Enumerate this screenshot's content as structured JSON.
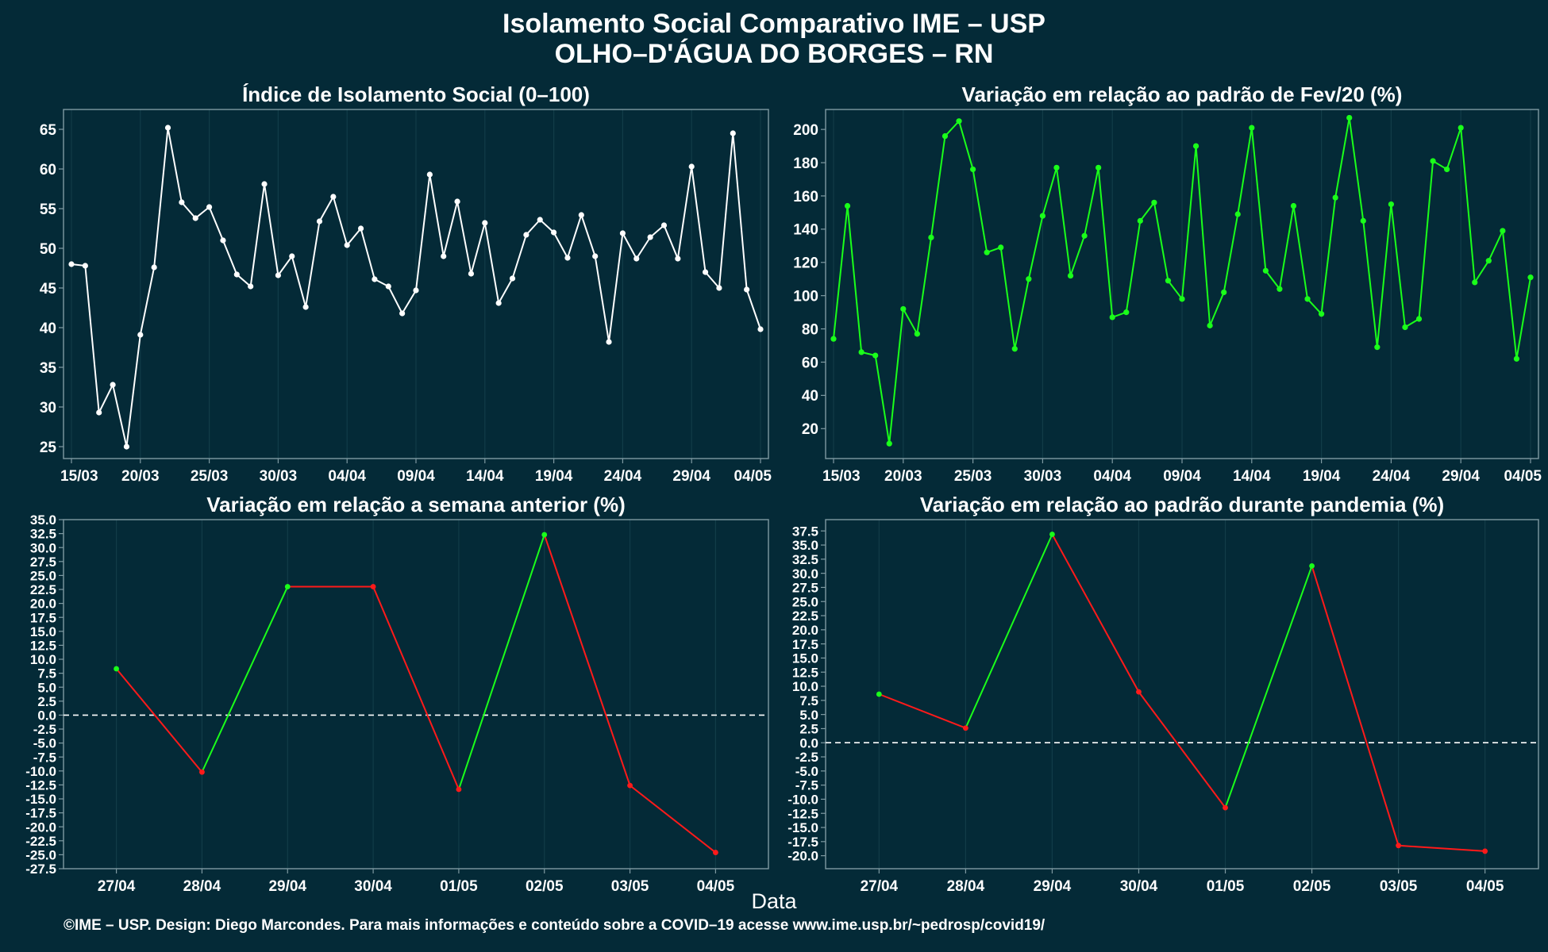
{
  "header": {
    "title_line1": "Isolamento Social Comparativo IME – USP",
    "title_line2": "OLHO–D'ÁGUA DO BORGES – RN"
  },
  "x_axis_title": "Data",
  "footer": "©IME – USP. Design: Diego Marcondes. Para mais informações e conteúdo sobre a COVID–19 acesse www.ime.usp.br/~pedrosp/covid19/",
  "colors": {
    "background": "#042a37",
    "white_series": "#ffffff",
    "green": "#1aff1a",
    "red": "#ff1a1a",
    "axis": "#7f9aa2",
    "grid": "#123c48"
  },
  "chart_data": [
    {
      "id": "isolation",
      "type": "line",
      "title": "Índice de Isolamento Social (0–100)",
      "color_mode": "single",
      "color": "#ffffff",
      "x_start": "15/03",
      "x_ticks": [
        "15/03",
        "20/03",
        "25/03",
        "30/03",
        "04/04",
        "09/04",
        "14/04",
        "19/04",
        "24/04",
        "29/04",
        "04/05"
      ],
      "y_ticks": [
        25,
        30,
        35,
        40,
        45,
        50,
        55,
        60,
        65
      ],
      "xlim": [
        0,
        50
      ],
      "ylim": [
        23.5,
        67.5
      ],
      "values": [
        48.0,
        47.8,
        29.3,
        32.8,
        25.0,
        39.1,
        47.6,
        65.2,
        55.8,
        53.8,
        55.2,
        51.0,
        46.7,
        45.2,
        58.1,
        46.6,
        49.0,
        42.6,
        53.4,
        56.5,
        50.4,
        52.5,
        46.1,
        45.2,
        41.8,
        44.7,
        59.3,
        49.0,
        55.9,
        46.8,
        53.2,
        43.1,
        46.2,
        51.7,
        53.6,
        52.0,
        48.8,
        54.2,
        49.0,
        38.2,
        51.9,
        48.7,
        51.4,
        52.9,
        48.7,
        60.3,
        47.0,
        45.0,
        64.5,
        44.8,
        39.8
      ]
    },
    {
      "id": "fev20",
      "type": "line",
      "title": "Variação em relação ao padrão de Fev/20 (%)",
      "color_mode": "single",
      "color": "#1aff1a",
      "x_start": "15/03",
      "x_ticks": [
        "15/03",
        "20/03",
        "25/03",
        "30/03",
        "04/04",
        "09/04",
        "14/04",
        "19/04",
        "24/04",
        "29/04",
        "04/05"
      ],
      "y_ticks": [
        20,
        40,
        60,
        80,
        100,
        120,
        140,
        160,
        180,
        200
      ],
      "xlim": [
        0,
        50
      ],
      "ylim": [
        2,
        212
      ],
      "values": [
        74,
        154,
        66,
        64,
        11,
        92,
        77,
        135,
        196,
        205,
        176,
        126,
        129,
        68,
        110,
        148,
        177,
        112,
        136,
        177,
        87,
        90,
        145,
        156,
        109,
        98,
        190,
        82,
        102,
        149,
        201,
        115,
        104,
        154,
        98,
        89,
        159,
        207,
        145,
        69,
        155,
        81,
        86,
        181,
        176,
        201,
        108,
        121,
        139,
        62,
        111
      ]
    },
    {
      "id": "weekly",
      "type": "line",
      "title": "Variação em relação a semana anterior (%)",
      "color_mode": "updown",
      "categories": [
        "27/04",
        "28/04",
        "29/04",
        "30/04",
        "01/05",
        "02/05",
        "03/05",
        "04/05"
      ],
      "values": [
        8.3,
        -10.2,
        23.0,
        23.0,
        -13.3,
        32.3,
        -12.6,
        -24.6
      ],
      "y_ticks": [
        -27.5,
        -25.0,
        -22.5,
        -20.0,
        -17.5,
        -15.0,
        -12.5,
        -10.0,
        -7.5,
        -5.0,
        -2.5,
        0.0,
        2.5,
        5.0,
        7.5,
        10.0,
        12.5,
        15.0,
        17.5,
        20.0,
        22.5,
        25.0,
        27.5,
        30.0,
        32.5,
        35.0
      ],
      "ylim": [
        -27.5,
        35.0
      ],
      "reference_line": 0
    },
    {
      "id": "pandemic",
      "type": "line",
      "title": "Variação em relação ao padrão durante pandemia (%)",
      "color_mode": "updown",
      "categories": [
        "27/04",
        "28/04",
        "29/04",
        "30/04",
        "01/05",
        "02/05",
        "03/05",
        "04/05"
      ],
      "values": [
        8.6,
        2.6,
        36.9,
        9.0,
        -11.5,
        31.3,
        -18.2,
        -19.2
      ],
      "y_ticks": [
        -20.0,
        -17.5,
        -15.0,
        -12.5,
        -10.0,
        -7.5,
        -5.0,
        -2.5,
        0.0,
        2.5,
        5.0,
        7.5,
        10.0,
        12.5,
        15.0,
        17.5,
        20.0,
        22.5,
        25.0,
        27.5,
        30.0,
        32.5,
        35.0,
        37.5
      ],
      "ylim": [
        -22.3,
        39.5
      ],
      "reference_line": 0
    }
  ]
}
